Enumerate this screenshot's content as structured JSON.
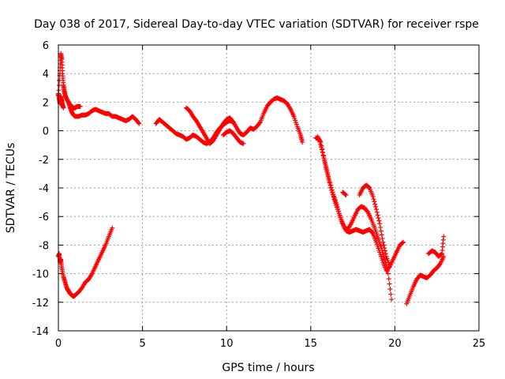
{
  "chart_data": {
    "type": "scatter",
    "title": "Day 038 of 2017, Sidereal Day-to-day VTEC variation (SDTVAR) for receiver rspe",
    "xlabel": "GPS time / hours",
    "ylabel": "SDTVAR / TECUs",
    "xlim": [
      0,
      25
    ],
    "ylim": [
      -14,
      6
    ],
    "xticks": [
      0,
      5,
      10,
      15,
      20,
      25
    ],
    "yticks": [
      -14,
      -12,
      -10,
      -8,
      -6,
      -4,
      -2,
      0,
      2,
      4,
      6
    ],
    "grid": true,
    "legend": "none",
    "marker": "+",
    "marker_color": "#ff0000",
    "segments": [
      {
        "x": [
          0.0,
          0.1,
          0.15,
          0.2,
          0.25,
          0.3,
          0.35,
          0.4,
          0.5,
          0.6,
          0.7,
          0.8,
          0.9,
          1.0,
          1.1,
          1.2,
          1.3
        ],
        "y": [
          2.5,
          4.2,
          5.4,
          5.0,
          4.0,
          3.2,
          2.8,
          2.5,
          2.2,
          2.0,
          1.8,
          1.7,
          1.6,
          1.6,
          1.7,
          1.7,
          1.7
        ]
      },
      {
        "x": [
          0.0,
          0.05,
          0.1,
          0.15,
          0.2,
          0.25,
          0.3
        ],
        "y": [
          2.6,
          2.2,
          1.9,
          2.4,
          2.1,
          1.8,
          1.6
        ]
      },
      {
        "x": [
          0.6,
          0.7,
          0.8,
          0.9,
          1.0,
          1.1,
          1.2,
          1.4,
          1.6,
          1.8,
          2.0,
          2.2,
          2.4,
          2.6,
          2.8,
          3.0,
          3.2,
          3.4,
          3.6,
          3.8,
          4.0,
          4.2,
          4.4,
          4.6,
          4.8
        ],
        "y": [
          2.0,
          1.6,
          1.3,
          1.1,
          1.0,
          1.0,
          1.0,
          1.1,
          1.1,
          1.2,
          1.4,
          1.5,
          1.4,
          1.3,
          1.2,
          1.2,
          1.0,
          1.0,
          0.9,
          0.8,
          0.7,
          0.8,
          1.0,
          0.8,
          0.5
        ]
      },
      {
        "x": [
          0.0,
          0.05,
          0.1,
          0.15,
          0.2,
          0.3,
          0.4,
          0.5,
          0.6,
          0.7,
          0.8,
          0.9,
          1.0,
          1.2,
          1.4,
          1.6,
          1.8,
          2.0,
          2.2,
          2.4,
          2.6,
          2.8,
          3.0,
          3.2
        ],
        "y": [
          -8.8,
          -8.6,
          -9.2,
          -9.0,
          -9.6,
          -10.2,
          -10.6,
          -11.0,
          -11.2,
          -11.4,
          -11.5,
          -11.6,
          -11.5,
          -11.3,
          -11.0,
          -10.6,
          -10.4,
          -10.0,
          -9.5,
          -9.0,
          -8.5,
          -8.0,
          -7.4,
          -6.8
        ]
      },
      {
        "x": [
          5.8,
          6.0,
          6.2,
          6.4,
          6.6,
          6.8,
          7.0,
          7.2,
          7.4,
          7.6,
          7.8,
          8.0,
          8.2,
          8.4,
          8.6,
          8.8,
          9.0,
          9.2,
          9.4,
          9.6,
          9.8,
          10.0,
          10.2,
          10.4
        ],
        "y": [
          0.5,
          0.8,
          0.6,
          0.4,
          0.2,
          0.0,
          -0.2,
          -0.3,
          -0.4,
          -0.6,
          -0.5,
          -0.3,
          -0.4,
          -0.6,
          -0.8,
          -0.9,
          -0.8,
          -0.5,
          -0.1,
          0.2,
          0.4,
          0.6,
          0.7,
          0.6
        ]
      },
      {
        "x": [
          7.6,
          7.8,
          8.0,
          8.2,
          8.4,
          8.6,
          8.8,
          9.0,
          9.2,
          9.4,
          9.6,
          9.8,
          10.0,
          10.2,
          10.4,
          10.6,
          10.8,
          11.0,
          11.2,
          11.4,
          11.6,
          11.8,
          12.0,
          12.2,
          12.4,
          12.6,
          12.8,
          13.0,
          13.2,
          13.4,
          13.6,
          13.8,
          14.0,
          14.2,
          14.4,
          14.5
        ],
        "y": [
          1.6,
          1.4,
          1.0,
          0.7,
          0.3,
          -0.1,
          -0.5,
          -0.9,
          -0.7,
          -0.3,
          0.1,
          0.5,
          0.8,
          0.9,
          0.6,
          0.2,
          -0.2,
          -0.3,
          -0.1,
          0.2,
          0.1,
          0.3,
          0.6,
          1.2,
          1.7,
          2.0,
          2.2,
          2.3,
          2.2,
          2.1,
          1.9,
          1.5,
          1.0,
          0.3,
          -0.3,
          -0.8
        ]
      },
      {
        "x": [
          9.8,
          10.0,
          10.2,
          10.4,
          10.6,
          10.8,
          11.0
        ],
        "y": [
          -0.3,
          -0.1,
          0.0,
          -0.2,
          -0.5,
          -0.8,
          -0.9
        ]
      },
      {
        "x": [
          15.3,
          15.5,
          15.7,
          15.9,
          16.1,
          16.3,
          16.5,
          16.7,
          16.9,
          17.1,
          17.3,
          17.5,
          17.7,
          17.9,
          18.1,
          18.3,
          18.5,
          18.7,
          18.9,
          19.1,
          19.3,
          19.5,
          19.7,
          19.9,
          20.1,
          20.3,
          20.5
        ],
        "y": [
          -0.5,
          -0.6,
          -1.5,
          -2.5,
          -3.5,
          -4.3,
          -5.0,
          -5.8,
          -6.5,
          -7.0,
          -7.1,
          -7.0,
          -6.9,
          -7.0,
          -7.1,
          -7.0,
          -6.9,
          -7.2,
          -7.8,
          -8.5,
          -9.2,
          -9.8,
          -9.5,
          -9.0,
          -8.5,
          -8.0,
          -7.8
        ]
      },
      {
        "x": [
          15.4,
          15.6,
          15.8,
          16.0,
          16.2,
          16.4,
          16.6,
          16.8,
          17.0,
          17.2,
          17.4,
          17.6,
          17.8,
          18.0,
          18.2,
          18.4,
          18.6,
          18.8,
          19.0,
          19.2,
          19.4,
          19.6,
          19.8
        ],
        "y": [
          -0.4,
          -0.8,
          -2.0,
          -3.0,
          -4.0,
          -4.8,
          -5.5,
          -6.2,
          -6.8,
          -6.9,
          -6.5,
          -6.0,
          -5.5,
          -5.3,
          -5.4,
          -5.7,
          -6.2,
          -6.8,
          -7.5,
          -8.2,
          -9.0,
          -10.0,
          -11.8
        ]
      },
      {
        "x": [
          17.9,
          18.1,
          18.3,
          18.5,
          18.7,
          18.9,
          19.1,
          19.3,
          19.5,
          19.7
        ],
        "y": [
          -4.5,
          -4.0,
          -3.8,
          -4.0,
          -4.6,
          -5.5,
          -6.5,
          -7.8,
          -8.8,
          -9.5
        ]
      },
      {
        "x": [
          16.9,
          17.1
        ],
        "y": [
          -4.3,
          -4.5
        ]
      },
      {
        "x": [
          20.7,
          20.9,
          21.1,
          21.3,
          21.5,
          21.7,
          21.9,
          22.1,
          22.3,
          22.5,
          22.7,
          22.9
        ],
        "y": [
          -12.1,
          -11.5,
          -10.9,
          -10.4,
          -10.1,
          -10.2,
          -10.3,
          -10.1,
          -9.8,
          -9.6,
          -9.3,
          -8.8
        ]
      },
      {
        "x": [
          22.0,
          22.2,
          22.4,
          22.6,
          22.8,
          22.9
        ],
        "y": [
          -8.6,
          -8.4,
          -8.5,
          -8.8,
          -8.6,
          -7.4
        ]
      }
    ]
  }
}
